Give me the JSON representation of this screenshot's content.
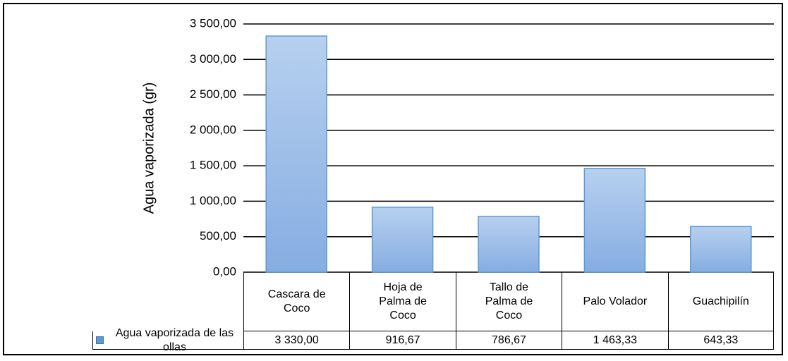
{
  "chart_data": {
    "type": "bar",
    "y_axis_label": "Agua vaporizada (gr)",
    "categories": [
      "Cascara de Coco",
      "Hoja de Palma de Coco",
      "Tallo de Palma de Coco",
      "Palo Volador",
      "Guachipilín"
    ],
    "series": [
      {
        "name": "Agua vaporizada de las ollas",
        "color": "#5b9bd5",
        "values": [
          3330,
          916.67,
          786.67,
          1463.33,
          643.33
        ],
        "value_labels": [
          "3 330,00",
          "916,67",
          "786,67",
          "1 463,33",
          "643,33"
        ]
      }
    ],
    "ylim": [
      0,
      3500
    ],
    "yticks": [
      {
        "value": 0,
        "label": "0,00"
      },
      {
        "value": 500,
        "label": "500,00"
      },
      {
        "value": 1000,
        "label": "1 000,00"
      },
      {
        "value": 1500,
        "label": "1 500,00"
      },
      {
        "value": 2000,
        "label": "2 000,00"
      },
      {
        "value": 2500,
        "label": "2 500,00"
      },
      {
        "value": 3000,
        "label": "3 000,00"
      },
      {
        "value": 3500,
        "label": "3 500,00"
      }
    ],
    "grid": true
  }
}
